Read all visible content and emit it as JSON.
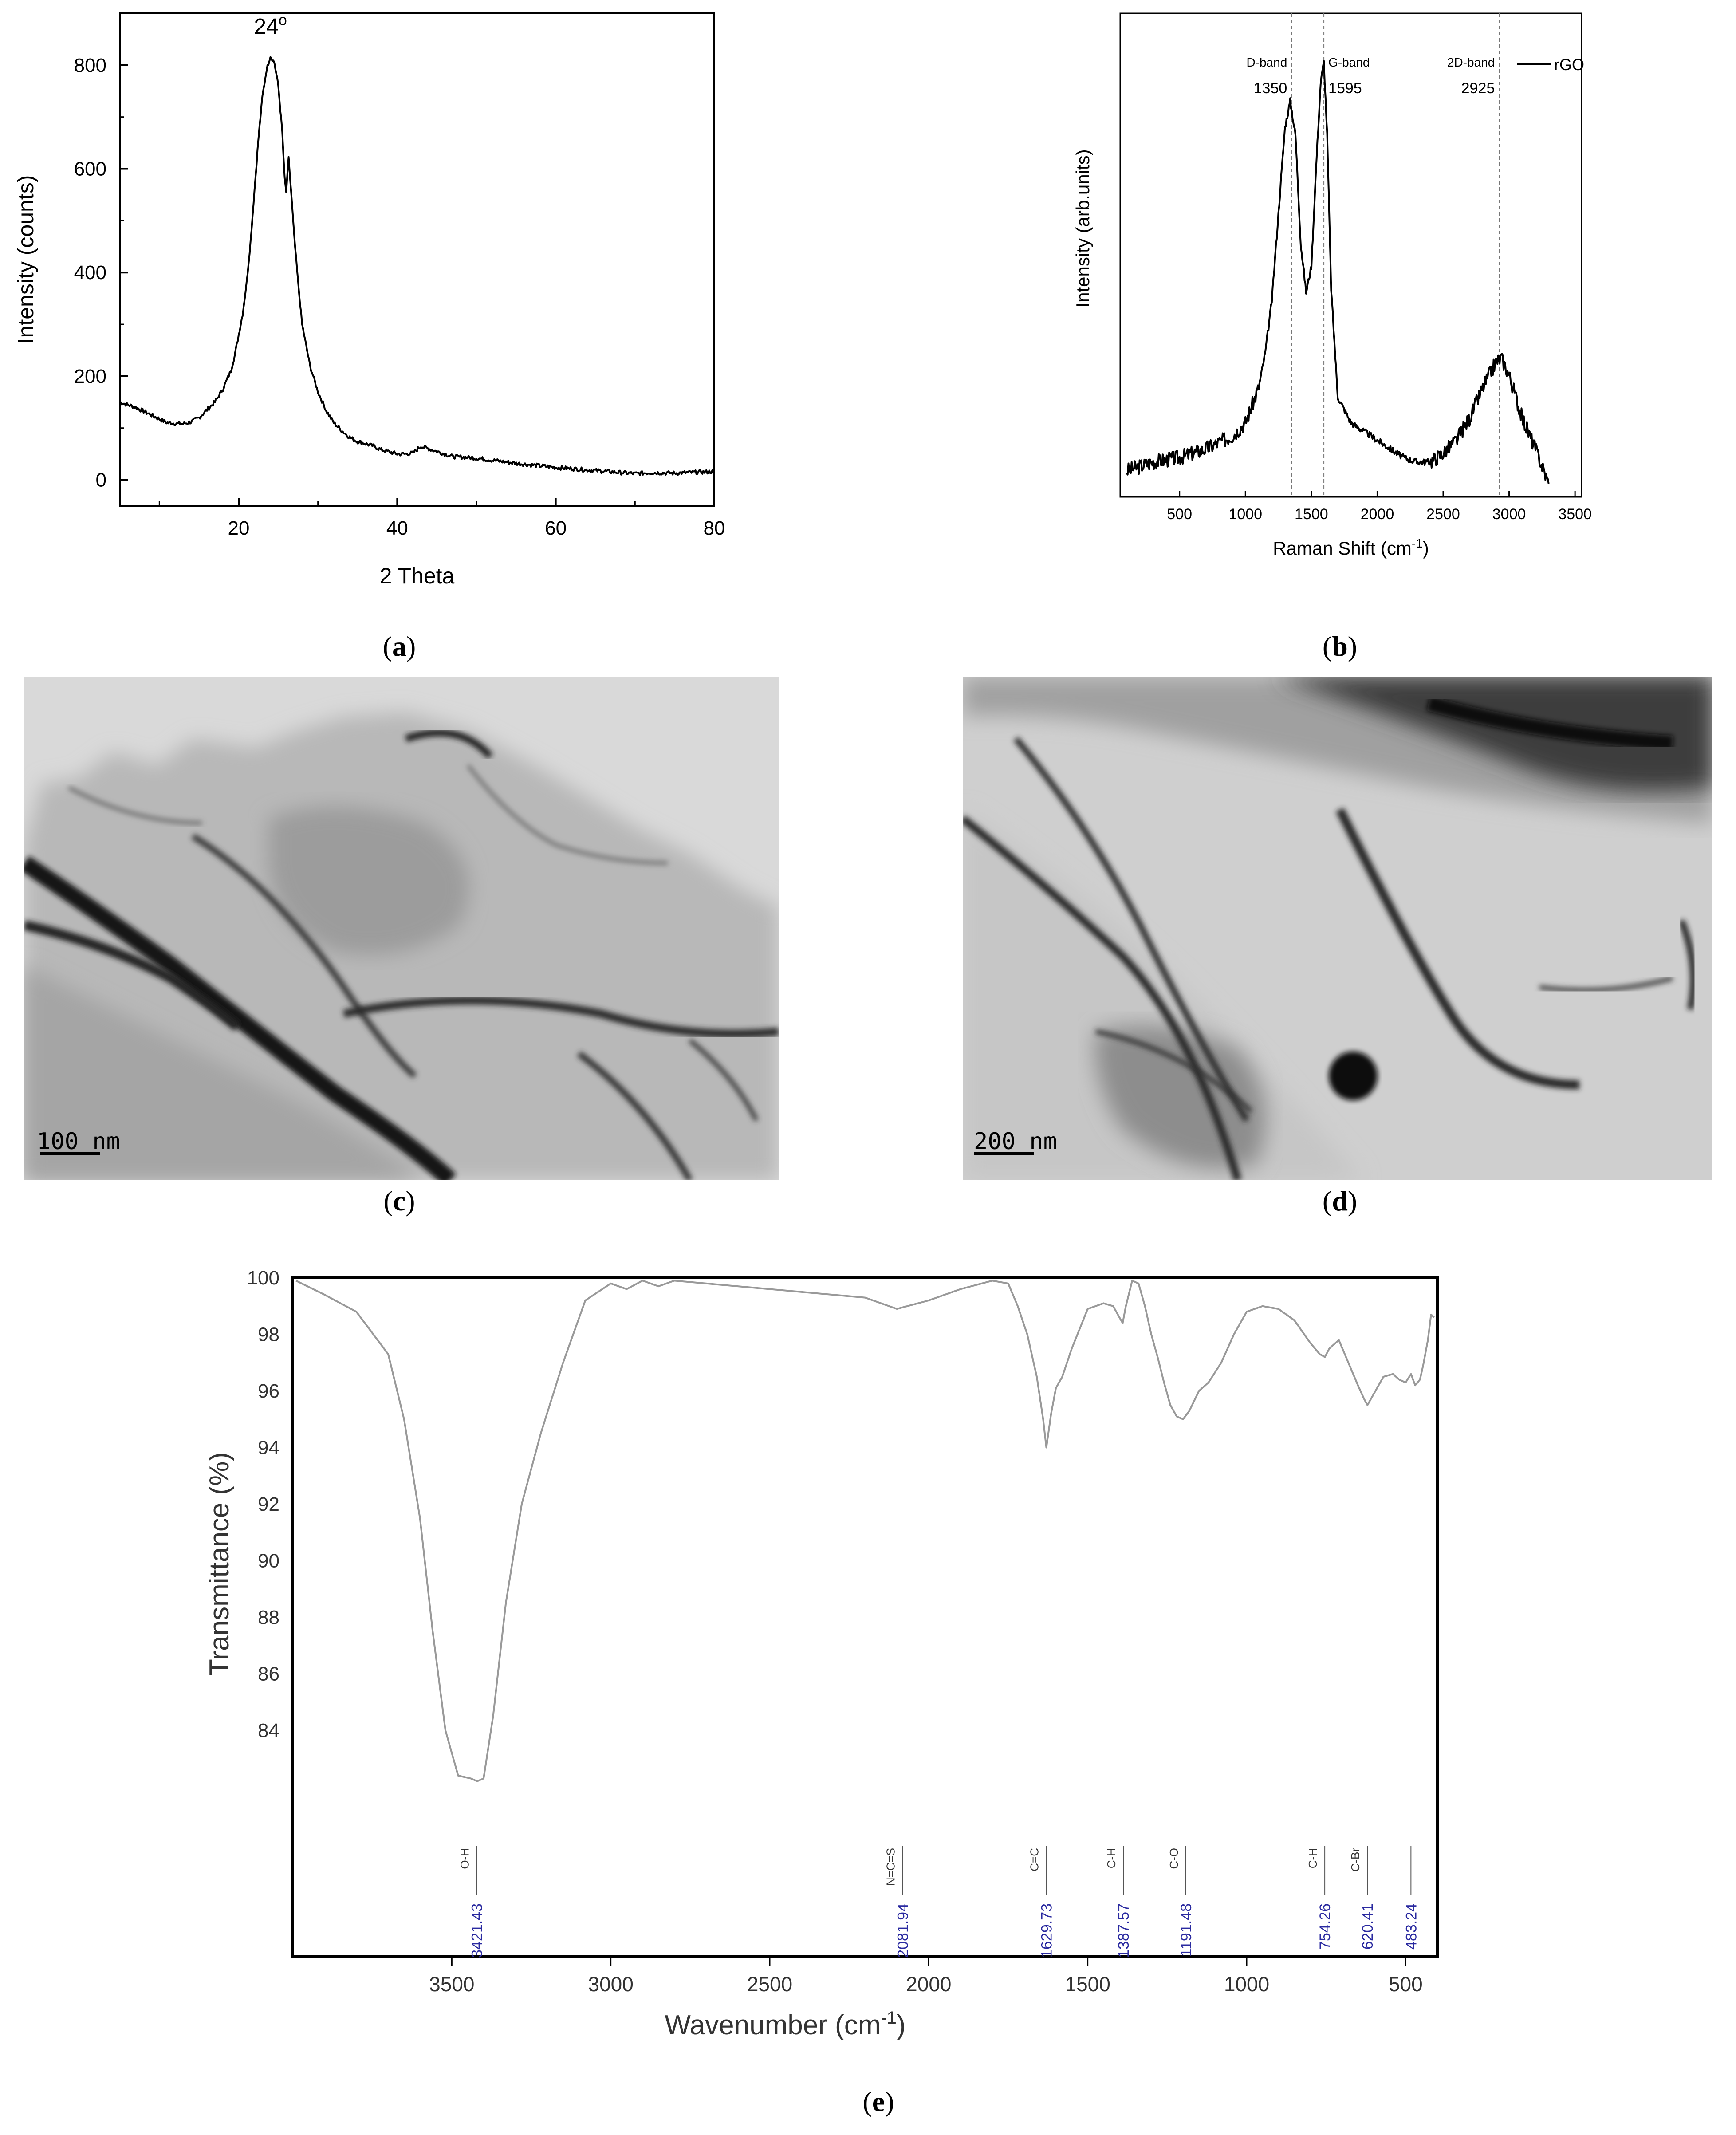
{
  "panels": {
    "a": "a",
    "b": "b",
    "c": "c",
    "d": "d",
    "e": "e"
  },
  "chart_data": [
    {
      "id": "a",
      "type": "line",
      "title": "",
      "xlabel": "2 Theta",
      "ylabel": "Intensity (counts)",
      "xlim": [
        5,
        80
      ],
      "ylim": [
        -50,
        900
      ],
      "xticks": [
        20,
        40,
        60,
        80
      ],
      "yticks": [
        0,
        200,
        400,
        600,
        800
      ],
      "annotations": [
        {
          "text": "24°",
          "x": 24,
          "y": 860
        }
      ],
      "series": [
        {
          "x": [
            5,
            7,
            9,
            11,
            13,
            14,
            15,
            16,
            17,
            18,
            19,
            19.5,
            20,
            20.5,
            21,
            21.5,
            22,
            22.5,
            23,
            23.5,
            24,
            24.5,
            25,
            25.5,
            25.8,
            26,
            26.3,
            26.6,
            27,
            27.5,
            28,
            29,
            30,
            31,
            32,
            33,
            34,
            35,
            36,
            37,
            38,
            39,
            40,
            41,
            42,
            43,
            44,
            45,
            47,
            50,
            55,
            60,
            65,
            70,
            72,
            75,
            78,
            80
          ],
          "y": [
            150,
            140,
            125,
            110,
            108,
            112,
            120,
            135,
            150,
            175,
            210,
            240,
            280,
            320,
            380,
            460,
            560,
            660,
            740,
            790,
            818,
            805,
            760,
            670,
            580,
            555,
            620,
            560,
            470,
            380,
            300,
            220,
            170,
            135,
            110,
            95,
            82,
            74,
            70,
            65,
            58,
            54,
            50,
            50,
            52,
            65,
            60,
            55,
            45,
            42,
            32,
            24,
            18,
            12,
            14,
            13,
            15,
            16
          ]
        }
      ]
    },
    {
      "id": "b",
      "type": "line",
      "title": "",
      "xlabel": "Raman Shift (cm",
      "xlabel_sup": "-1",
      "xlabel_end": ")",
      "ylabel": "Intensity (arb.units)",
      "xlim": [
        50,
        3550
      ],
      "ylim": [
        0,
        1
      ],
      "xticks": [
        500,
        1000,
        1500,
        2000,
        2500,
        3000,
        3500
      ],
      "legend": {
        "label": "rGO",
        "position": "top-right"
      },
      "band_lines": [
        {
          "name": "D-band",
          "value": "1350",
          "x": 1350
        },
        {
          "name": "G-band",
          "value": "1595",
          "x": 1595
        },
        {
          "name": "2D-band",
          "value": "2925",
          "x": 2925
        }
      ],
      "series": [
        {
          "name": "rGO",
          "x": [
            100,
            300,
            500,
            700,
            900,
            1000,
            1100,
            1150,
            1200,
            1250,
            1300,
            1340,
            1380,
            1420,
            1460,
            1500,
            1540,
            1570,
            1595,
            1620,
            1650,
            1700,
            1800,
            1900,
            2000,
            2100,
            2200,
            2300,
            2400,
            2500,
            2600,
            2700,
            2800,
            2900,
            2940,
            3000,
            3100,
            3200,
            3250,
            3300
          ],
          "y": [
            0.03,
            0.05,
            0.06,
            0.08,
            0.11,
            0.14,
            0.22,
            0.3,
            0.42,
            0.62,
            0.82,
            0.88,
            0.8,
            0.55,
            0.44,
            0.5,
            0.75,
            0.92,
            0.97,
            0.8,
            0.45,
            0.2,
            0.14,
            0.12,
            0.1,
            0.08,
            0.06,
            0.05,
            0.05,
            0.07,
            0.1,
            0.15,
            0.22,
            0.28,
            0.29,
            0.25,
            0.15,
            0.08,
            0.04,
            0.0
          ]
        }
      ]
    },
    {
      "id": "e",
      "type": "line",
      "title": "",
      "xlabel": "Wavenumber (cm",
      "xlabel_sup": "-1",
      "xlabel_end": ")",
      "ylabel": "Transmittance (%)",
      "xlim": [
        4000,
        400
      ],
      "ylim": [
        76,
        100
      ],
      "xticks": [
        3500,
        3000,
        2500,
        2000,
        1500,
        1000,
        500
      ],
      "yticks": [
        84,
        86,
        88,
        90,
        92,
        94,
        96,
        98,
        100
      ],
      "peak_labels": [
        {
          "group": "O-H",
          "value": "3421.43",
          "x": 3421.43
        },
        {
          "group": "N=C=S",
          "value": "2081.94",
          "x": 2081.94
        },
        {
          "group": "C=C",
          "value": "1629.73",
          "x": 1629.73
        },
        {
          "group": "C-H",
          "value": "1387.57",
          "x": 1387.57
        },
        {
          "group": "C-O",
          "value": "1191.48",
          "x": 1191.48
        },
        {
          "group": "C-H",
          "value": "754.26",
          "x": 754.26
        },
        {
          "group": "C-Br",
          "value": "620.41",
          "x": 620.41
        },
        {
          "group": "",
          "value": "483.24",
          "x": 483.24
        }
      ],
      "series": [
        {
          "x": [
            3990,
            3900,
            3800,
            3700,
            3650,
            3600,
            3560,
            3520,
            3480,
            3440,
            3420,
            3400,
            3370,
            3330,
            3280,
            3220,
            3150,
            3080,
            3000,
            2950,
            2900,
            2850,
            2800,
            2600,
            2400,
            2200,
            2100,
            2000,
            1900,
            1800,
            1750,
            1720,
            1690,
            1660,
            1640,
            1630,
            1615,
            1600,
            1580,
            1550,
            1500,
            1450,
            1420,
            1400,
            1390,
            1380,
            1360,
            1340,
            1320,
            1300,
            1280,
            1260,
            1240,
            1220,
            1200,
            1180,
            1150,
            1120,
            1080,
            1040,
            1000,
            950,
            900,
            850,
            800,
            770,
            754,
            740,
            710,
            680,
            650,
            630,
            620,
            600,
            570,
            540,
            520,
            500,
            483,
            470,
            455,
            445,
            430,
            420,
            410
          ],
          "y": [
            99.9,
            99.4,
            98.8,
            97.3,
            95.0,
            91.5,
            87.5,
            84.0,
            82.4,
            82.3,
            82.2,
            82.3,
            84.5,
            88.5,
            92.0,
            94.5,
            97.0,
            99.2,
            99.8,
            99.6,
            99.9,
            99.7,
            99.9,
            99.7,
            99.5,
            99.3,
            98.9,
            99.2,
            99.6,
            99.9,
            99.8,
            99.0,
            98.0,
            96.5,
            95.0,
            94.0,
            95.2,
            96.1,
            96.5,
            97.5,
            98.9,
            99.1,
            99.0,
            98.6,
            98.4,
            99.0,
            99.9,
            99.8,
            99.0,
            98.0,
            97.2,
            96.3,
            95.5,
            95.1,
            95.0,
            95.3,
            96.0,
            96.3,
            97.0,
            98.0,
            98.8,
            99.0,
            98.9,
            98.5,
            97.7,
            97.3,
            97.2,
            97.5,
            97.8,
            97.0,
            96.2,
            95.7,
            95.5,
            95.9,
            96.5,
            96.6,
            96.4,
            96.3,
            96.6,
            96.2,
            96.4,
            96.9,
            97.8,
            98.7,
            98.6
          ]
        }
      ]
    }
  ],
  "tem": {
    "c": {
      "scale": "100 nm"
    },
    "d": {
      "scale": "200 nm"
    }
  }
}
